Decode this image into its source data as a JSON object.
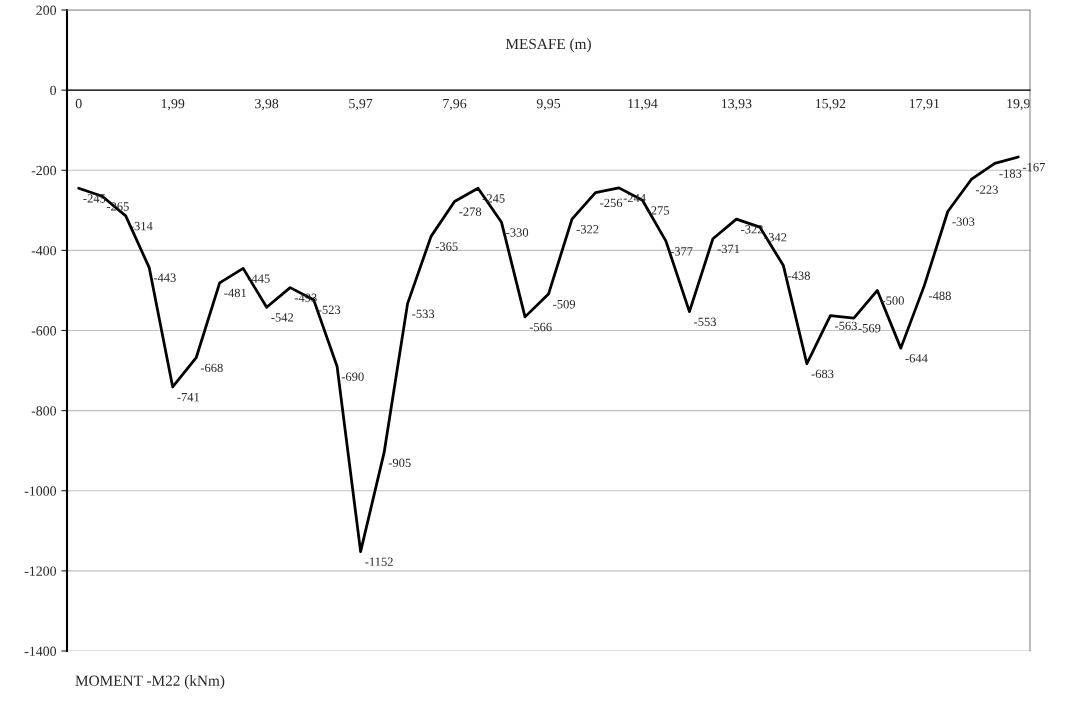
{
  "chart_data": {
    "type": "line",
    "xlabel": "MESAFE (m)",
    "annotations": [
      "MOMENT -M22 (kNm)"
    ],
    "categories": [
      "0",
      null,
      null,
      null,
      "1,99",
      null,
      null,
      null,
      "3,98",
      null,
      null,
      null,
      "5,97",
      null,
      null,
      null,
      "7,96",
      null,
      null,
      null,
      "9,95",
      null,
      null,
      null,
      "11,94",
      null,
      null,
      null,
      "13,93",
      null,
      null,
      null,
      "15,92",
      null,
      null,
      null,
      "17,91",
      null,
      null,
      null,
      "19,9"
    ],
    "series": [
      {
        "color": "#000000",
        "values": [
          -245,
          -265,
          -314,
          -443,
          -741,
          -668,
          -481,
          -445,
          -542,
          -493,
          -523,
          -690,
          -1152,
          -905,
          -533,
          -365,
          -278,
          -245,
          -330,
          -566,
          -509,
          -322,
          -256,
          -244,
          -275,
          -377,
          -553,
          -371,
          -322,
          -342,
          -438,
          -683,
          -563,
          -569,
          -500,
          -644,
          -488,
          -303,
          -223,
          -183,
          -167
        ]
      }
    ],
    "ylim": [
      -1400,
      200
    ],
    "yticks": [
      -1400,
      -1200,
      -1000,
      -800,
      -600,
      -400,
      -200,
      0,
      200
    ],
    "grid": "y",
    "data_labels": true,
    "marker": "none",
    "line_style": "solid"
  }
}
